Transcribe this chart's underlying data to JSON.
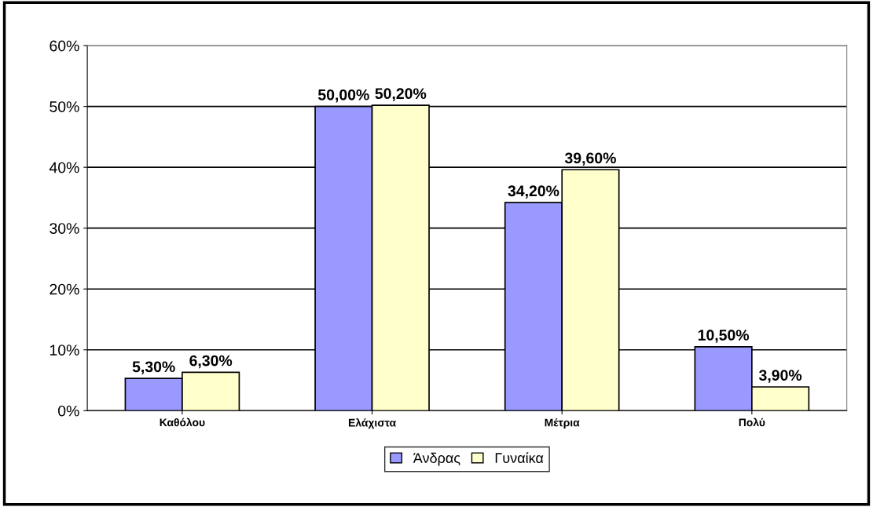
{
  "chart_data": {
    "type": "bar",
    "categories": [
      "Καθόλου",
      "Ελάχιστα",
      "Μέτρια",
      "Πολύ"
    ],
    "series": [
      {
        "name": "Άνδρας",
        "color": "#9999ff",
        "values": [
          5.3,
          50.0,
          34.2,
          10.5
        ],
        "value_labels": [
          "5,30%",
          "50,00%",
          "34,20%",
          "10,50%"
        ]
      },
      {
        "name": "Γυναίκα",
        "color": "#ffffcc",
        "values": [
          6.3,
          50.2,
          39.6,
          3.9
        ],
        "value_labels": [
          "6,30%",
          "50,20%",
          "39,60%",
          "3,90%"
        ]
      }
    ],
    "ylim": [
      0,
      60
    ],
    "yticks": [
      {
        "value": 0,
        "label": "0%"
      },
      {
        "value": 10,
        "label": "10%"
      },
      {
        "value": 20,
        "label": "20%"
      },
      {
        "value": 30,
        "label": "30%"
      },
      {
        "value": 40,
        "label": "40%"
      },
      {
        "value": 50,
        "label": "50%"
      },
      {
        "value": 60,
        "label": "60%"
      }
    ],
    "grid": "y",
    "legend": "bottom"
  }
}
